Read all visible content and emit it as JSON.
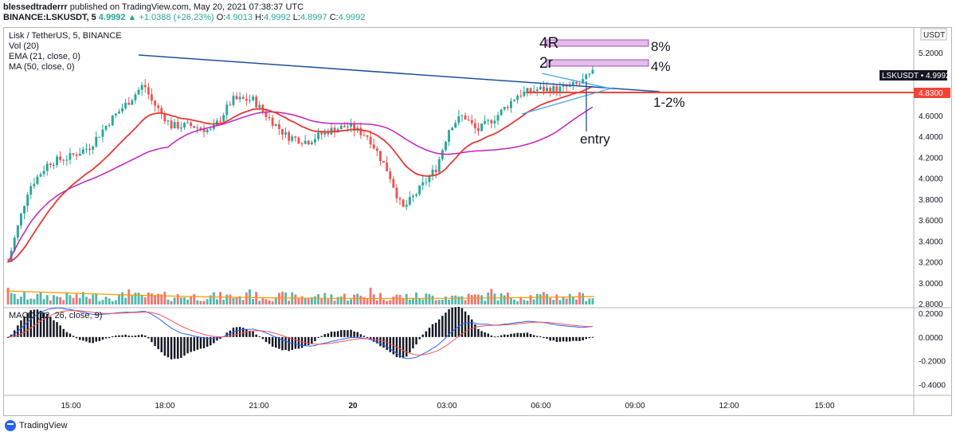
{
  "header": {
    "publisher": "blessedtraderrr",
    "published_text": "published on TradingView.com, May 20, 2021 07:38:37 UTC",
    "symbol": "BINANCE:LSKUSDT, 5",
    "last": "4.9992",
    "change": "▲ +1.0388 (+26.23%)",
    "o_label": "O:",
    "o": "4.9013",
    "h_label": "H:",
    "h": "4.9992",
    "l_label": "L:",
    "l": "4.8997",
    "c_label": "C:",
    "c": "4.9992"
  },
  "legend": {
    "title": "Lisk / TetherUS, 5, BINANCE",
    "vol": "Vol (20)",
    "ema": "EMA (21, close, 0)",
    "ma": "MA (50, close, 0)",
    "macd": "MACD (12, 26, close, 9)"
  },
  "price_axis": {
    "currency": "USDT",
    "ticks": [
      "5.2000",
      "5.0000",
      "4.8000",
      "4.6000",
      "4.4000",
      "4.2000",
      "4.0000",
      "3.8000",
      "3.6000",
      "3.4000",
      "3.2000",
      "3.0000",
      "2.8000"
    ],
    "last_label": "LSKUSDT • 4.9992",
    "line_label": "4.8300"
  },
  "macd_axis": {
    "ticks": [
      "0.2000",
      "0.0000",
      "-0.2000",
      "-0.4000"
    ]
  },
  "time_axis": {
    "ticks": [
      "15:00",
      "18:00",
      "21:00",
      "20",
      "03:00",
      "06:00",
      "09:00",
      "12:00",
      "15:00"
    ]
  },
  "annotations": {
    "r4": "4R",
    "r2": "2r",
    "pct8": "8%",
    "pct4": "4%",
    "stop": "1-2%",
    "entry": "entry"
  },
  "colors": {
    "up": "#26a69a",
    "down": "#ef5350",
    "ema": "#e53935",
    "ma": "#c020c0",
    "trendline": "#1e4fa0",
    "hline": "#f44336",
    "target_box": "#e1bee7",
    "macd_line": "#2962ff",
    "signal_line": "#ff5252"
  },
  "footer": {
    "brand": "TradingView"
  },
  "chart_data": {
    "type": "candlestick",
    "title": "Lisk / TetherUS, 5, BINANCE",
    "x": [
      "15:00",
      "18:00",
      "21:00",
      "20",
      "03:00",
      "06:00",
      "09:00",
      "12:00",
      "15:00"
    ],
    "ylim": [
      2.8,
      5.25
    ],
    "price_path": [
      [
        0,
        3.2
      ],
      [
        3,
        3.9
      ],
      [
        6,
        4.15
      ],
      [
        9,
        4.2
      ],
      [
        12,
        4.3
      ],
      [
        15,
        4.55
      ],
      [
        18,
        4.75
      ],
      [
        20,
        4.9
      ],
      [
        21,
        4.75
      ],
      [
        24,
        4.5
      ],
      [
        27,
        4.5
      ],
      [
        30,
        4.45
      ],
      [
        33,
        4.75
      ],
      [
        36,
        4.75
      ],
      [
        38,
        4.6
      ],
      [
        41,
        4.4
      ],
      [
        44,
        4.35
      ],
      [
        47,
        4.45
      ],
      [
        50,
        4.5
      ],
      [
        53,
        4.4
      ],
      [
        56,
        4.05
      ],
      [
        58,
        3.7
      ],
      [
        60,
        3.85
      ],
      [
        63,
        4.1
      ],
      [
        65,
        4.5
      ],
      [
        67,
        4.6
      ],
      [
        69,
        4.45
      ],
      [
        72,
        4.6
      ],
      [
        75,
        4.8
      ],
      [
        78,
        4.85
      ],
      [
        81,
        4.85
      ],
      [
        84,
        4.9
      ],
      [
        86,
        5.0
      ]
    ],
    "annotations": {
      "target_4R": "8%",
      "target_2r": "4%",
      "stop": "1-2%",
      "entry_price": 4.83,
      "last_price": 4.9992
    },
    "macd": {
      "ylim": [
        -0.45,
        0.22
      ]
    }
  }
}
